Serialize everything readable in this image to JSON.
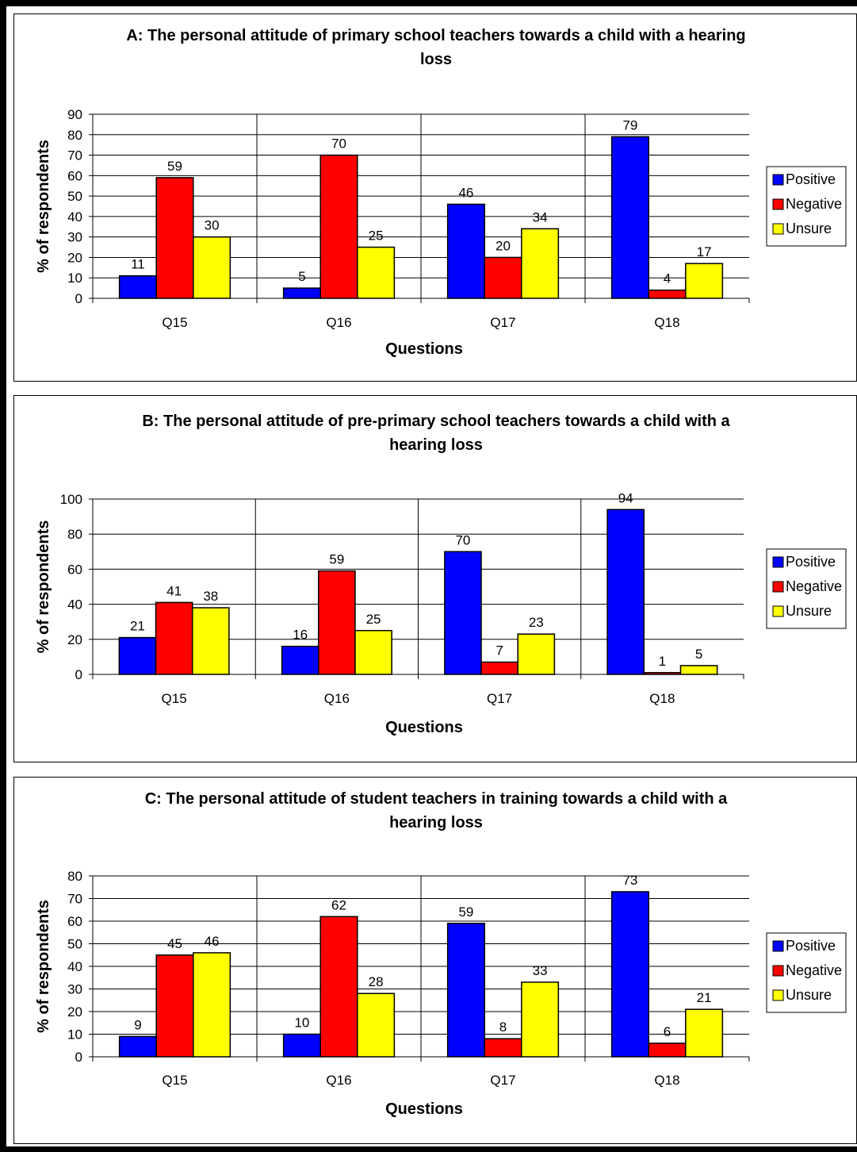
{
  "chart_data": [
    {
      "type": "bar",
      "title": "A: The personal attitude of primary school teachers towards a child with a hearing loss",
      "title_lines": [
        "A: The personal attitude of primary school teachers towards a child with a hearing",
        "loss"
      ],
      "xlabel": "Questions",
      "ylabel": "% of respondents",
      "categories": [
        "Q15",
        "Q16",
        "Q17",
        "Q18"
      ],
      "ylim": [
        0,
        90
      ],
      "yticks": [
        "0",
        "10",
        "20",
        "30",
        "40",
        "50",
        "60",
        "70",
        "80",
        "90"
      ],
      "series": [
        {
          "name": "Positive",
          "values": [
            11,
            5,
            46,
            79
          ]
        },
        {
          "name": "Negative",
          "values": [
            59,
            70,
            20,
            4
          ]
        },
        {
          "name": "Unsure",
          "values": [
            30,
            25,
            34,
            17
          ]
        }
      ],
      "grid": true,
      "legend_position": "right"
    },
    {
      "type": "bar",
      "title": "B: The personal attitude of pre-primary school teachers towards a child with a hearing loss",
      "title_lines": [
        "B: The personal attitude of pre-primary school teachers towards a child with a",
        "hearing loss"
      ],
      "xlabel": "Questions",
      "ylabel": "% of respondents",
      "categories": [
        "Q15",
        "Q16",
        "Q17",
        "Q18"
      ],
      "ylim": [
        0,
        100
      ],
      "yticks": [
        "0",
        "20",
        "40",
        "60",
        "80",
        "100"
      ],
      "series": [
        {
          "name": "Positive",
          "values": [
            21,
            16,
            70,
            94
          ]
        },
        {
          "name": "Negative",
          "values": [
            41,
            59,
            7,
            1
          ]
        },
        {
          "name": "Unsure",
          "values": [
            38,
            25,
            23,
            5
          ]
        }
      ],
      "grid": true,
      "legend_position": "right"
    },
    {
      "type": "bar",
      "title": "C: The personal attitude of student teachers in training towards a child with a hearing loss",
      "title_lines": [
        "C: The personal attitude of student teachers in training towards a child with a",
        "hearing loss"
      ],
      "xlabel": "Questions",
      "ylabel": "% of respondents",
      "categories": [
        "Q15",
        "Q16",
        "Q17",
        "Q18"
      ],
      "ylim": [
        0,
        80
      ],
      "yticks": [
        "0",
        "10",
        "20",
        "30",
        "40",
        "50",
        "60",
        "70",
        "80"
      ],
      "series": [
        {
          "name": "Positive",
          "values": [
            9,
            10,
            59,
            73
          ]
        },
        {
          "name": "Negative",
          "values": [
            45,
            62,
            8,
            6
          ]
        },
        {
          "name": "Unsure",
          "values": [
            46,
            28,
            33,
            21
          ]
        }
      ],
      "grid": true,
      "legend_position": "right"
    }
  ],
  "colors": {
    "Positive": "#0000ff",
    "Negative": "#ff0000",
    "Unsure": "#ffff00"
  }
}
